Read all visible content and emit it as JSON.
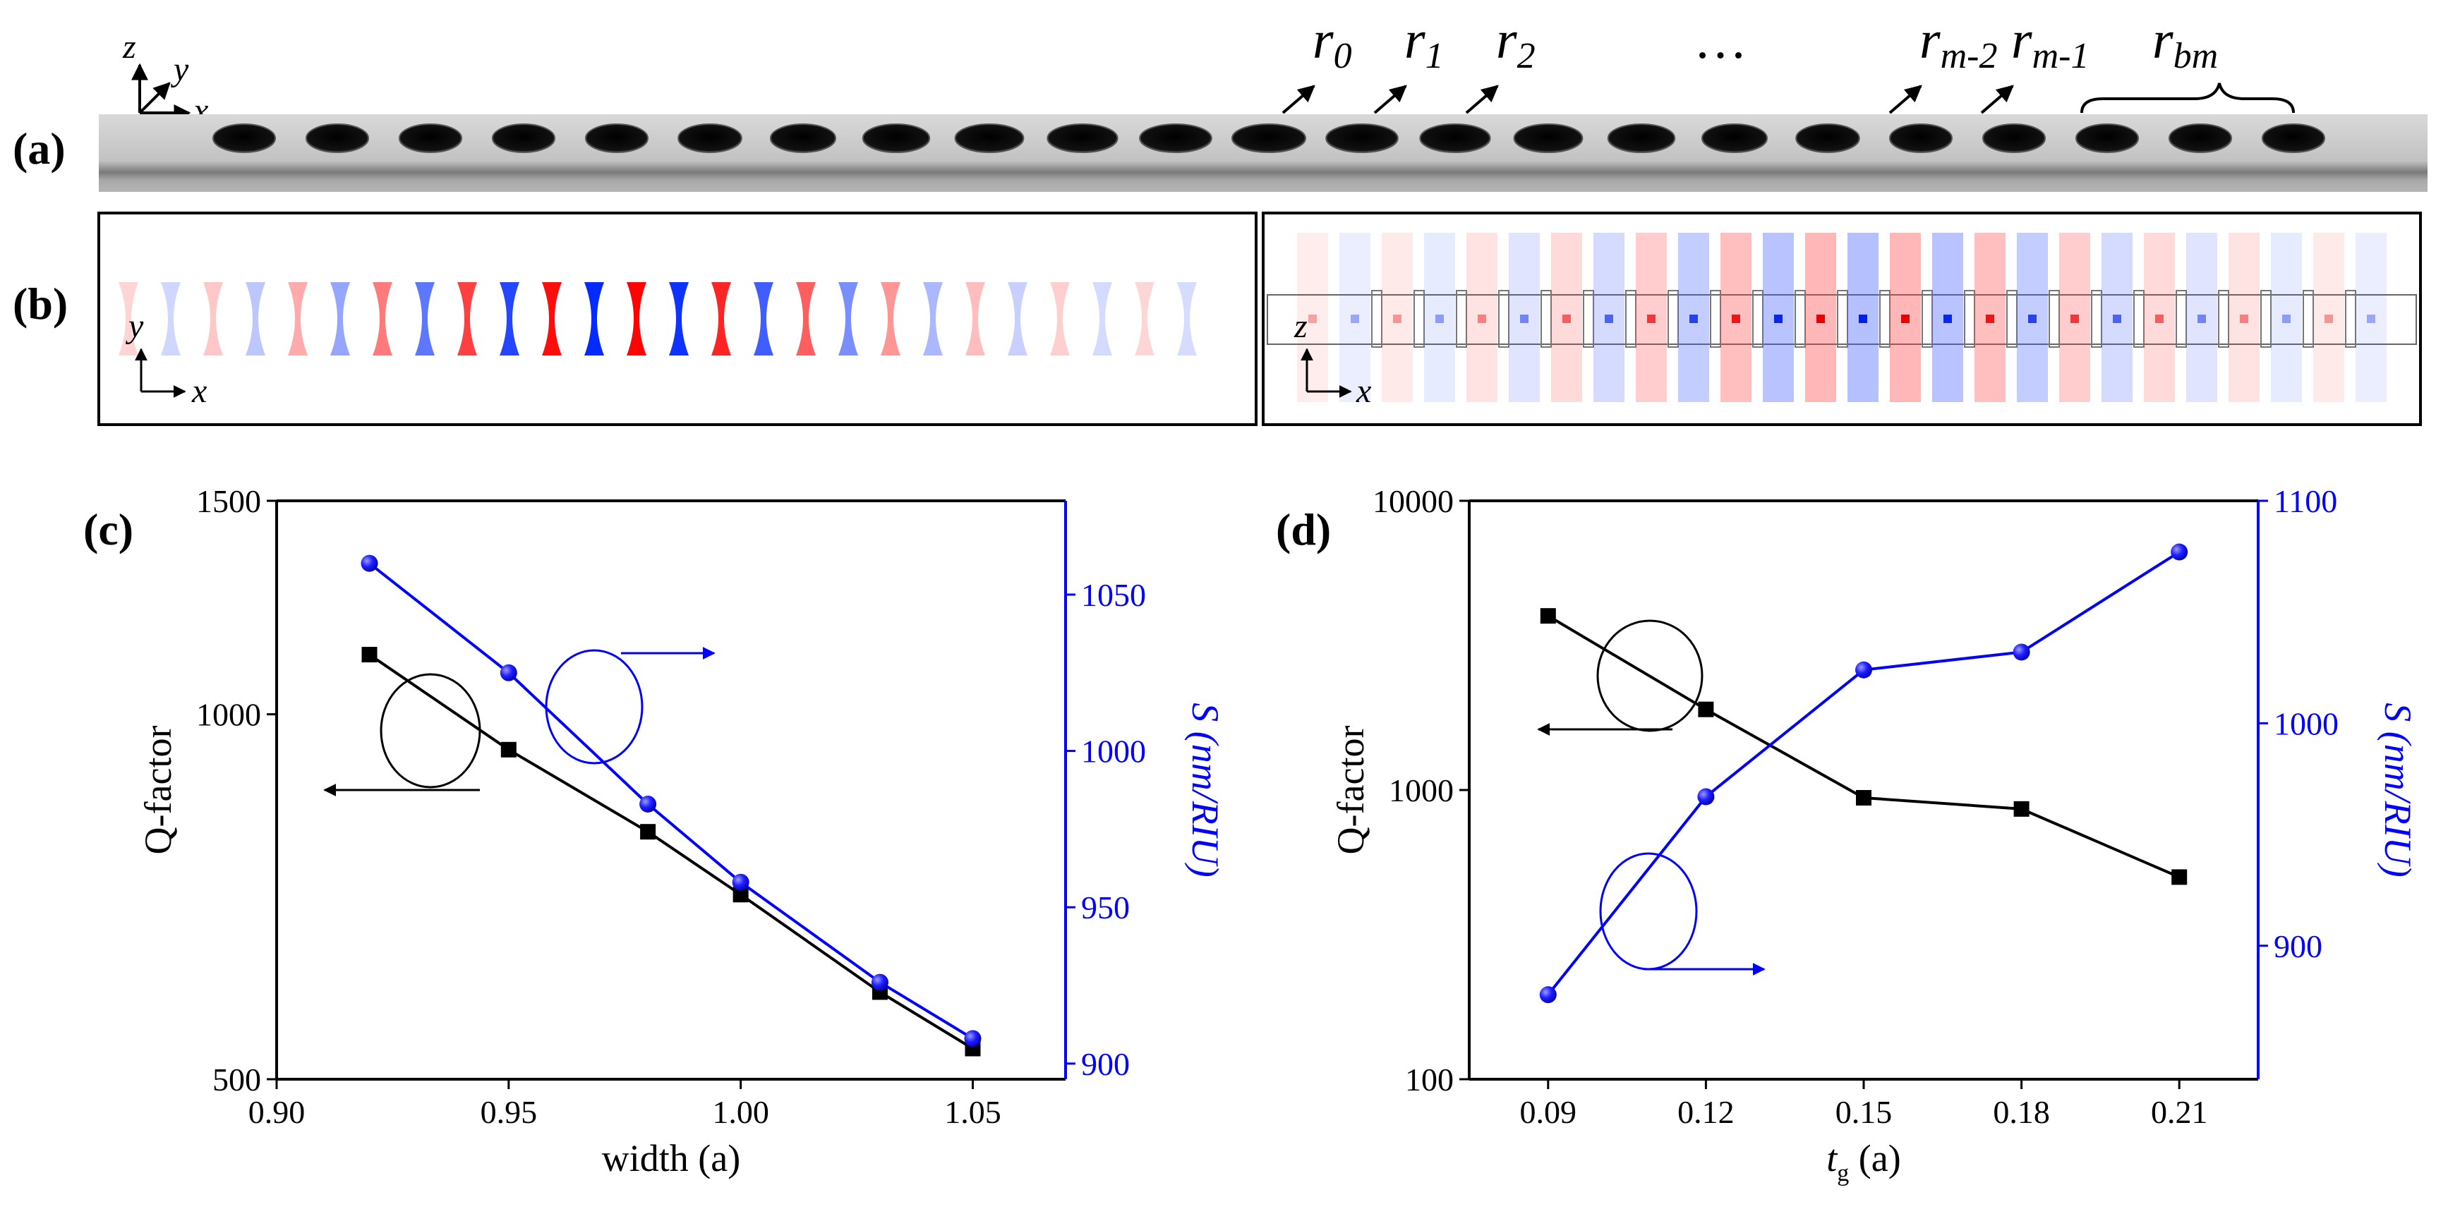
{
  "figure": {
    "panel_labels": {
      "a": "(a)",
      "b": "(b)",
      "c": "(c)",
      "d": "(d)"
    },
    "panel_a": {
      "axes": {
        "z": "z",
        "y": "y",
        "x": "x"
      },
      "radius_labels": [
        {
          "base": "r",
          "sub": "0"
        },
        {
          "base": "r",
          "sub": "1"
        },
        {
          "base": "r",
          "sub": "2"
        },
        {
          "base": "r",
          "sub": "m-2"
        },
        {
          "base": "r",
          "sub": "m-1"
        },
        {
          "base": "r",
          "sub": "bm"
        }
      ],
      "ellipsis": "…",
      "hole_count": 23
    },
    "panel_b": {
      "left_axes": {
        "v": "y",
        "h": "x"
      },
      "right_axes": {
        "v": "z",
        "h": "x"
      }
    }
  },
  "chart_data": [
    {
      "id": "c",
      "type": "line",
      "title": "",
      "xlabel": "width",
      "xlabel_unit": "(a)",
      "ylabel": "Q-factor",
      "y2label": "S",
      "y2label_unit": "(nm/RIU)",
      "xlim": [
        0.9,
        1.07
      ],
      "xticks": [
        "0.90",
        "0.95",
        "1.00",
        "1.05"
      ],
      "ylim": [
        500,
        1500
      ],
      "yscale": "log",
      "yticks": [
        "500",
        "1000",
        "1500"
      ],
      "y2lim": [
        895,
        1080
      ],
      "y2ticks": [
        "900",
        "950",
        "1000",
        "1050"
      ],
      "series": [
        {
          "name": "Q-factor",
          "axis": "left",
          "color": "#000000",
          "marker": "square",
          "x": [
            0.92,
            0.95,
            0.98,
            1.0,
            1.03,
            1.05
          ],
          "values": [
            1120,
            935,
            800,
            710,
            590,
            530
          ]
        },
        {
          "name": "S",
          "axis": "right",
          "color": "#0000ff",
          "marker": "circle",
          "x": [
            0.92,
            0.95,
            0.98,
            1.0,
            1.03,
            1.05
          ],
          "values": [
            1060,
            1025,
            983,
            958,
            926,
            908
          ]
        }
      ]
    },
    {
      "id": "d",
      "type": "line",
      "title": "",
      "xlabel": "t",
      "xlabel_sub": "g",
      "xlabel_unit": "(a)",
      "ylabel": "Q-factor",
      "y2label": "S",
      "y2label_unit": "(nm/RIU)",
      "xlim": [
        0.075,
        0.225
      ],
      "xticks": [
        "0.09",
        "0.12",
        "0.15",
        "0.18",
        "0.21"
      ],
      "ylim": [
        100,
        10000
      ],
      "yscale": "log",
      "yticks": [
        "100",
        "1000",
        "10000"
      ],
      "y2lim": [
        840,
        1100
      ],
      "y2ticks": [
        "900",
        "1000",
        "1100"
      ],
      "series": [
        {
          "name": "Q-factor",
          "axis": "left",
          "color": "#000000",
          "marker": "square",
          "x": [
            0.09,
            0.12,
            0.15,
            0.18,
            0.21
          ],
          "values": [
            4000,
            1900,
            940,
            860,
            500
          ]
        },
        {
          "name": "S",
          "axis": "right",
          "color": "#0000ff",
          "marker": "circle",
          "x": [
            0.09,
            0.12,
            0.15,
            0.18,
            0.21
          ],
          "values": [
            878,
            967,
            1024,
            1032,
            1077
          ]
        }
      ]
    }
  ]
}
